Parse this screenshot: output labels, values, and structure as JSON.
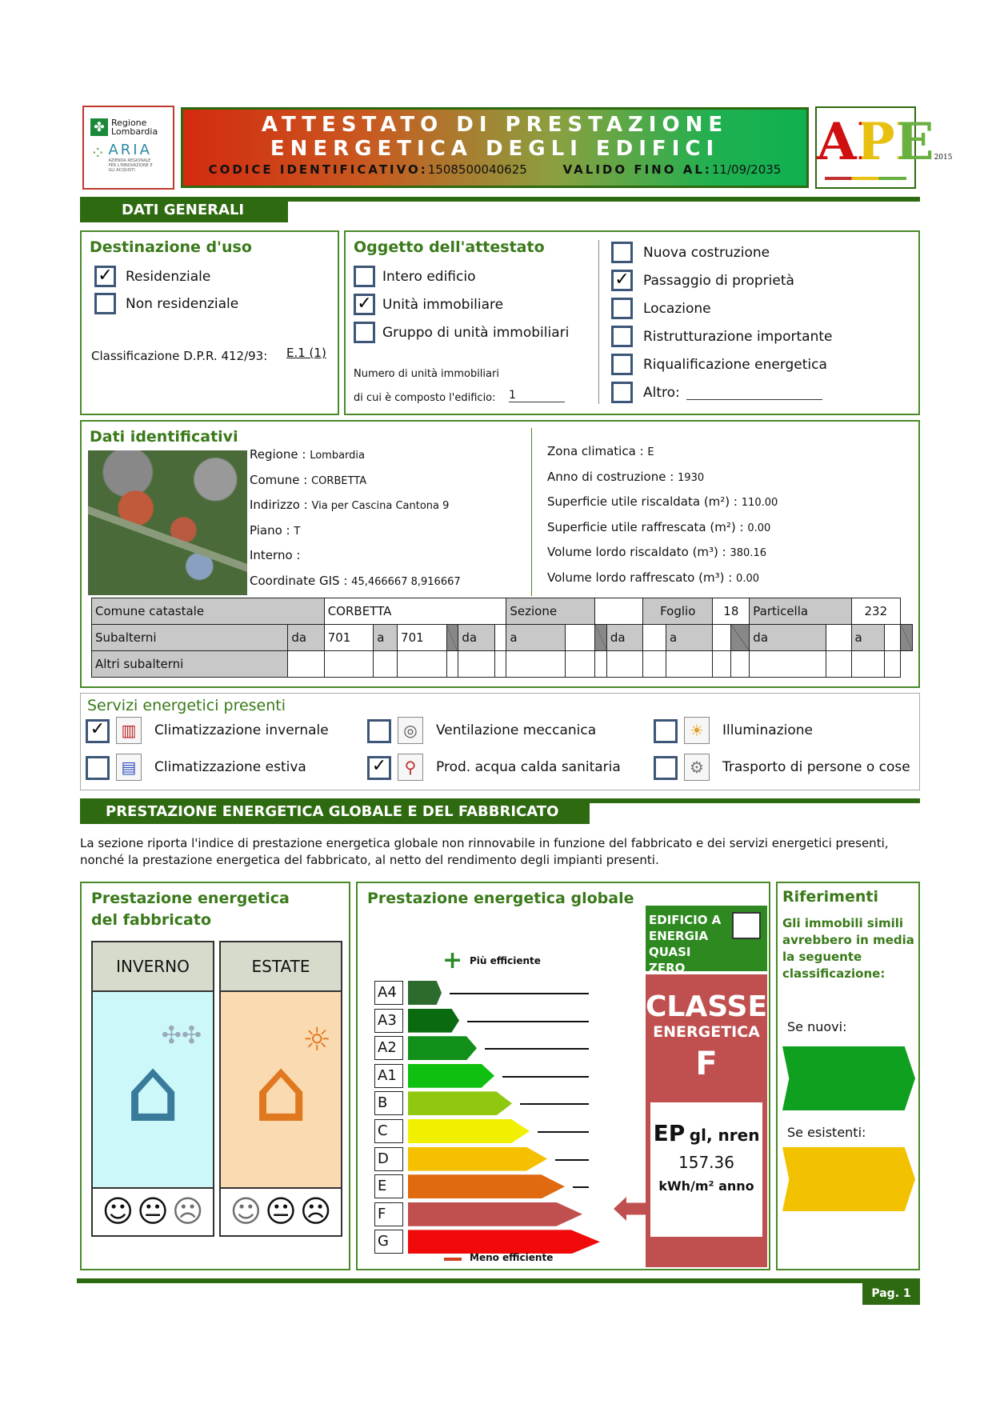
{
  "header": {
    "logo1": "Regione Lombardia",
    "logo2": "ARIA",
    "logo2_sub": "AZIENDA REGIONALE PER L'INNOVAZIONE E GLI ACQUISTI",
    "title1": "ATTESTATO DI PRESTAZIONE",
    "title2": "ENERGETICA DEGLI EDIFICI",
    "code_label": "CODICE IDENTIFICATIVO:",
    "code": "1508500040625",
    "valid_label": "VALIDO FINO AL:",
    "valid": "11/09/2035",
    "ape_logo": "APE",
    "ape_year": "2015"
  },
  "dati_generali": {
    "tab": "DATI GENERALI",
    "destinazione": {
      "title": "Destinazione d'uso",
      "items": [
        {
          "label": "Residenziale",
          "checked": true
        },
        {
          "label": "Non residenziale",
          "checked": false
        }
      ],
      "class_label": "Classificazione D.P.R. 412/93:",
      "class_value": "E.1 (1)"
    },
    "oggetto": {
      "title": "Oggetto dell'attestato",
      "items": [
        {
          "label": "Intero edificio",
          "checked": false
        },
        {
          "label": "Unità immobiliare",
          "checked": true
        },
        {
          "label": "Gruppo di unità immobiliari",
          "checked": false
        }
      ],
      "num_label1": "Numero di unità immobiliari",
      "num_label2": "di cui è composto l'edificio:",
      "num_value": "1"
    },
    "motivo": [
      {
        "label": "Nuova costruzione",
        "checked": false
      },
      {
        "label": "Passaggio di proprietà",
        "checked": true
      },
      {
        "label": "Locazione",
        "checked": false
      },
      {
        "label": "Ristrutturazione importante",
        "checked": false
      },
      {
        "label": "Riqualificazione energetica",
        "checked": false
      },
      {
        "label": "Altro:",
        "checked": false
      }
    ]
  },
  "identificativi": {
    "title": "Dati identificativi",
    "left": [
      {
        "label": "Regione :",
        "value": "Lombardia"
      },
      {
        "label": "Comune :",
        "value": "CORBETTA"
      },
      {
        "label": "Indirizzo :",
        "value": "Via per Cascina Cantona  9"
      },
      {
        "label": "Piano :",
        "value": "T"
      },
      {
        "label": "Interno :",
        "value": ""
      },
      {
        "label": "Coordinate GIS :",
        "value": "45,466667 8,916667"
      }
    ],
    "right": [
      {
        "label": "Zona climatica :",
        "value": "E"
      },
      {
        "label": "Anno di costruzione :",
        "value": "1930"
      },
      {
        "label": "Superficie utile riscaldata (m²) :",
        "value": "110.00"
      },
      {
        "label": "Superficie utile raffrescata (m²) :",
        "value": "0.00"
      },
      {
        "label": "Volume lordo riscaldato (m³) :",
        "value": "380.16"
      },
      {
        "label": "Volume lordo raffrescato (m³) :",
        "value": "0.00"
      }
    ],
    "catasto": {
      "comune_label": "Comune catastale",
      "comune": "CORBETTA",
      "sezione_label": "Sezione",
      "sezione": "",
      "foglio_label": "Foglio",
      "foglio": "18",
      "particella_label": "Particella",
      "particella": "232",
      "subalterni_label": "Subalterni",
      "da": "da",
      "a": "a",
      "sub_da": "701",
      "sub_a": "701",
      "altri_label": "Altri subalterni"
    }
  },
  "servizi": {
    "title": "Servizi energetici presenti",
    "items": [
      {
        "label": "Climatizzazione invernale",
        "checked": true,
        "icon": "radiator-icon"
      },
      {
        "label": "Ventilazione meccanica",
        "checked": false,
        "icon": "fan-icon"
      },
      {
        "label": "Illuminazione",
        "checked": false,
        "icon": "bulb-icon"
      },
      {
        "label": "Climatizzazione estiva",
        "checked": false,
        "icon": "air-conditioner-icon"
      },
      {
        "label": "Prod. acqua calda sanitaria",
        "checked": true,
        "icon": "tap-icon"
      },
      {
        "label": "Trasporto di persone o cose",
        "checked": false,
        "icon": "gear-icon"
      }
    ]
  },
  "prestazione": {
    "tab": "PRESTAZIONE ENERGETICA GLOBALE  E DEL FABBRICATO",
    "intro": "La sezione riporta l'indice di prestazione energetica globale non rinnovabile in funzione del fabbricato e dei servizi energetici presenti, nonché la prestazione energetica del fabbricato, al netto del rendimento degli impianti presenti.",
    "fabbricato": {
      "title": "Prestazione energetica del fabbricato",
      "inverno": "INVERNO",
      "estate": "ESTATE",
      "inverno_rating": "good",
      "estate_rating": "bad"
    },
    "globale": {
      "title": "Prestazione energetica globale",
      "piu": "Più efficiente",
      "meno": "Meno efficiente",
      "nzeb_label": "EDIFICIO A ENERGIA QUASI ZERO",
      "nzeb_checked": false,
      "classe_label": "CLASSE",
      "energetica_label": "ENERGETICA",
      "classe": "F",
      "ep_label": "EP",
      "ep_sub": "gl, nren",
      "ep_value": "157.36",
      "ep_unit": "kWh/m² anno",
      "classes": [
        {
          "label": "A4",
          "color": "#2d6a2d"
        },
        {
          "label": "A3",
          "color": "#0a6a10"
        },
        {
          "label": "A2",
          "color": "#12901a"
        },
        {
          "label": "A1",
          "color": "#10c010"
        },
        {
          "label": "B",
          "color": "#90c810"
        },
        {
          "label": "C",
          "color": "#f0f000"
        },
        {
          "label": "D",
          "color": "#f4c000"
        },
        {
          "label": "E",
          "color": "#e06a10"
        },
        {
          "label": "F",
          "color": "#c05050"
        },
        {
          "label": "G",
          "color": "#f00a0a"
        }
      ]
    },
    "riferimenti": {
      "title": "Riferimenti",
      "text": "Gli immobili simili avrebbero in media la seguente classificazione:",
      "nuovi": "Se nuovi:",
      "esistenti": "Se esistenti:",
      "nuovi_color": "#10a020",
      "esistenti_color": "#f2c200"
    }
  },
  "footer": {
    "page": "Pag. 1"
  }
}
